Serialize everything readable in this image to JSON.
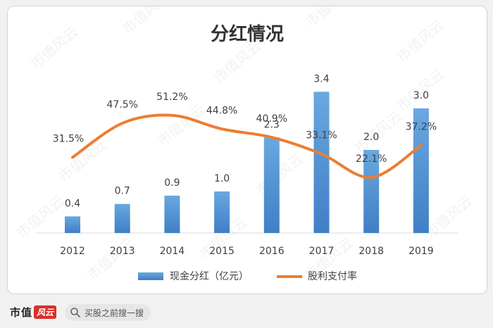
{
  "chart_data": {
    "type": "bar+line",
    "title": "分红情况",
    "categories": [
      "2012",
      "2013",
      "2014",
      "2015",
      "2016",
      "2017",
      "2018",
      "2019"
    ],
    "series": [
      {
        "name": "现金分红（亿元）",
        "type": "bar",
        "values": [
          0.4,
          0.7,
          0.9,
          1.0,
          2.3,
          3.4,
          2.0,
          3.0
        ],
        "labels": [
          "0.4",
          "0.7",
          "0.9",
          "1.0",
          "2.3",
          "3.4",
          "2.0",
          "3.0"
        ],
        "color": "#5b9bd5"
      },
      {
        "name": "股利支付率",
        "type": "line",
        "values": [
          31.5,
          47.5,
          51.2,
          44.8,
          40.9,
          33.1,
          22.1,
          37.2
        ],
        "labels": [
          "31.5%",
          "47.5%",
          "51.2%",
          "44.8%",
          "40.9%",
          "33.1%",
          "22.1%",
          "37.2%"
        ],
        "color": "#ed7d31"
      }
    ],
    "legend_position": "bottom",
    "grid": false,
    "y_axis_visible": false
  },
  "watermark": "市值风云",
  "footer": {
    "brand": "市值",
    "brand_badge": "风云",
    "search_placeholder": "买股之前搜一搜",
    "search_icon": "search-icon"
  }
}
